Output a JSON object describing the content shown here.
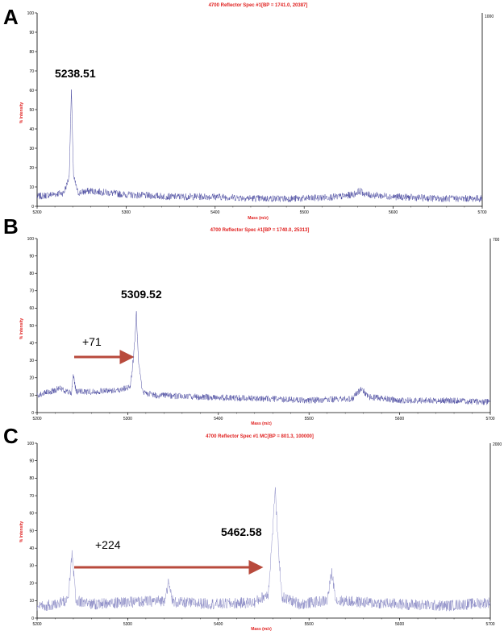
{
  "chart_data": [
    {
      "type": "line",
      "panel": "A",
      "title": "4700 Reflector Spec #1[BP = 1741.0, 20387]",
      "xlabel": "Mass (m/z)",
      "ylabel": "% Intensity",
      "xlim": [
        5200,
        5700
      ],
      "ylim": [
        0,
        100
      ],
      "x_ticks": [
        "5200",
        "5300",
        "5400",
        "5500",
        "5600",
        "5700"
      ],
      "y_ticks": [
        "0",
        "10",
        "20",
        "30",
        "40",
        "50",
        "60",
        "70",
        "80",
        "90",
        "100"
      ],
      "right_axis_label": "1000",
      "color": "#3f3f9a",
      "peak_annotation": "5238.51",
      "series": [
        {
          "x": [
            5200,
            5215,
            5230,
            5236,
            5238.5,
            5241,
            5246,
            5260,
            5300,
            5350,
            5400,
            5450,
            5500,
            5540,
            5555,
            5562,
            5570,
            5600,
            5650,
            5700
          ],
          "values": [
            5,
            6,
            7,
            15,
            60,
            15,
            7,
            8,
            6,
            5,
            5,
            4,
            4,
            5,
            6,
            8,
            6,
            5,
            4,
            4
          ]
        }
      ]
    },
    {
      "type": "line",
      "panel": "B",
      "title": "4700 Reflector Spec #1[BP = 1740.0, 25313]",
      "xlabel": "Mass (m/z)",
      "ylabel": "% Intensity",
      "xlim": [
        5200,
        5700
      ],
      "ylim": [
        0,
        100
      ],
      "x_ticks": [
        "5200",
        "5300",
        "5400",
        "5500",
        "5600",
        "5700"
      ],
      "y_ticks": [
        "0",
        "10",
        "20",
        "30",
        "40",
        "50",
        "60",
        "70",
        "80",
        "90",
        "100"
      ],
      "right_axis_label": "700",
      "color": "#3f3f9a",
      "peak_annotation": "5309.52",
      "shift_annotation": "+71",
      "series": [
        {
          "x": [
            5200,
            5215,
            5225,
            5238,
            5240,
            5243,
            5260,
            5290,
            5303,
            5307,
            5309.5,
            5312,
            5316,
            5330,
            5380,
            5450,
            5500,
            5548,
            5558,
            5565,
            5600,
            5650,
            5700
          ],
          "values": [
            10,
            12,
            14,
            11,
            22,
            12,
            12,
            13,
            15,
            35,
            57,
            30,
            12,
            10,
            9,
            8,
            7,
            8,
            14,
            9,
            7,
            7,
            6
          ]
        }
      ]
    },
    {
      "type": "line",
      "panel": "C",
      "title": "4700 Reflector Spec #1 MC[BP = 801.3, 100000]",
      "xlabel": "Mass (m/z)",
      "ylabel": "% Intensity",
      "xlim": [
        5200,
        5700
      ],
      "ylim": [
        0,
        100
      ],
      "x_ticks": [
        "5200",
        "5300",
        "5400",
        "5500",
        "5600",
        "5700"
      ],
      "y_ticks": [
        "0",
        "10",
        "20",
        "30",
        "40",
        "50",
        "60",
        "70",
        "80",
        "90",
        "100"
      ],
      "right_axis_label": "2000",
      "color": "#8080c0",
      "peak_annotation": "5462.58",
      "shift_annotation": "+224",
      "series": [
        {
          "x": [
            5200,
            5220,
            5234,
            5238.5,
            5243,
            5260,
            5300,
            5340,
            5345,
            5350,
            5400,
            5440,
            5455,
            5460,
            5462.6,
            5465,
            5470,
            5490,
            5520,
            5525,
            5530,
            5560,
            5600,
            5650,
            5700
          ],
          "values": [
            6,
            8,
            10,
            36,
            10,
            8,
            9,
            10,
            20,
            9,
            8,
            9,
            14,
            50,
            75,
            50,
            12,
            8,
            10,
            26,
            10,
            9,
            8,
            7,
            9
          ]
        }
      ]
    }
  ]
}
